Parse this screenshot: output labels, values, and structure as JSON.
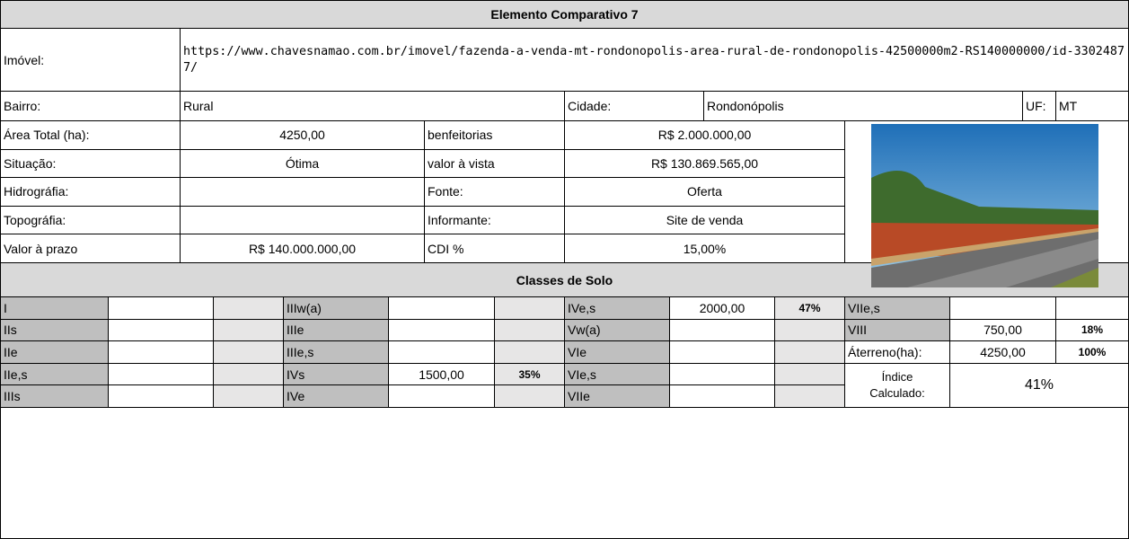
{
  "title": "Elemento Comparativo 7",
  "property": {
    "imovel_label": "Imóvel:",
    "url": "https://www.chavesnamao.com.br/imovel/fazenda-a-venda-mt-rondonopolis-area-rural-de-rondonopolis-42500000m2-RS140000000/id-33024877/",
    "bairro_label": "Bairro:",
    "bairro": "Rural",
    "cidade_label": "Cidade:",
    "cidade": "Rondonópolis",
    "uf_label": "UF:",
    "uf": "MT"
  },
  "details": {
    "rows": [
      {
        "label": "Área Total (ha):",
        "value": "4250,00",
        "label2": "benfeitorias",
        "value2": "R$ 2.000.000,00"
      },
      {
        "label": "Situação:",
        "value": "Ótima",
        "label2": "valor à vista",
        "value2": "R$ 130.869.565,00"
      },
      {
        "label": "Hidrográfia:",
        "label2": "Fonte:",
        "value2": "Oferta"
      },
      {
        "label": "Topográfia:",
        "label2": "Informante:",
        "value2": "Site de venda"
      },
      {
        "label": "Valor à prazo",
        "value": "R$ 140.000.000,00",
        "label2": "CDI %",
        "value2": "15,00%"
      }
    ]
  },
  "soil": {
    "title": "Classes de Solo",
    "groups": [
      [
        {
          "class": "I"
        },
        {
          "class": "IIs"
        },
        {
          "class": "IIe"
        },
        {
          "class": "IIe,s"
        },
        {
          "class": "IIIs"
        }
      ],
      [
        {
          "class": "IIIw(a)"
        },
        {
          "class": "IIIe"
        },
        {
          "class": "IIIe,s"
        },
        {
          "class": "IVs",
          "area": "1500,00",
          "percent": "35%"
        },
        {
          "class": "IVe"
        }
      ],
      [
        {
          "class": "IVe,s",
          "area": "2000,00",
          "percent": "47%"
        },
        {
          "class": "Vw(a)"
        },
        {
          "class": "VIe"
        },
        {
          "class": "VIe,s"
        },
        {
          "class": "VIIe"
        }
      ],
      [
        {
          "class": "VIIe,s"
        },
        {
          "class": "VIII",
          "area": "750,00",
          "percent": "18%"
        },
        {
          "class": "Áterreno(ha):",
          "area": "4250,00",
          "percent": "100%"
        }
      ]
    ],
    "index_label": "Índice Calculado:",
    "index_value": "41%"
  }
}
